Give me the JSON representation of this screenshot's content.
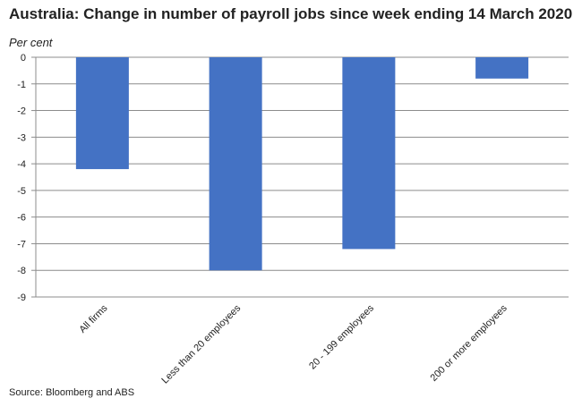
{
  "chart_data": {
    "type": "bar",
    "title": "Australia: Change in number of payroll jobs since week ending 14 March 2020",
    "ylabel": "Per cent",
    "xlabel": "",
    "categories": [
      "All firms",
      "Less than 20 employees",
      "20 - 199 employees",
      "200 or more employees"
    ],
    "values": [
      -4.2,
      -8.0,
      -7.2,
      -0.8
    ],
    "ylim": [
      -9,
      0
    ],
    "yticks": [
      0,
      -1,
      -2,
      -3,
      -4,
      -5,
      -6,
      -7,
      -8,
      -9
    ],
    "bar_color": "#4472C4",
    "grid": true,
    "legend": "none"
  },
  "source": "Source: Bloomberg and ABS"
}
